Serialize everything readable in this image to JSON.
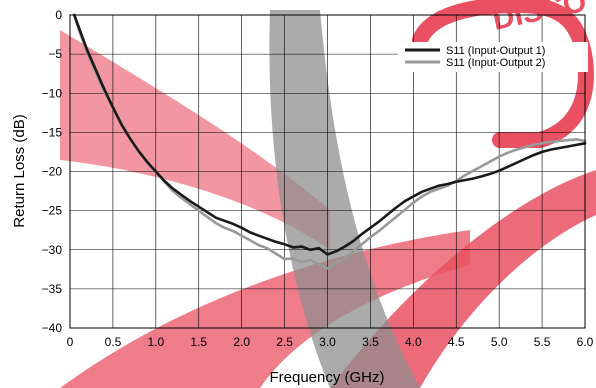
{
  "watermark": {
    "stamp_text": "DISCO",
    "stamp_color": "#e8485a",
    "band_color_red": "#e8485a",
    "band_color_gray": "#8a8a8a"
  },
  "chart_data": {
    "type": "line",
    "title": "",
    "xlabel": "Frequency (GHz)",
    "ylabel": "Return Loss (dB)",
    "xlim": [
      0,
      6
    ],
    "ylim": [
      -40,
      0
    ],
    "x_ticks": [
      0,
      0.5,
      1,
      1.5,
      2,
      2.5,
      3,
      3.5,
      4,
      4.5,
      5,
      5.5,
      6
    ],
    "x_tick_labels": [
      "0",
      "0.5",
      "1.0",
      "1.5",
      "2.0",
      "2.5",
      "3.0",
      "3.5",
      "4.0",
      "4.5",
      "5.0",
      "5.5",
      "6.0"
    ],
    "y_ticks": [
      0,
      -5,
      -10,
      -15,
      -20,
      -25,
      -30,
      -35,
      -40
    ],
    "y_tick_labels": [
      "0",
      "−5",
      "−10",
      "−15",
      "−20",
      "−25",
      "−30",
      "−35",
      "−40"
    ],
    "grid": true,
    "legend_position": "top-right",
    "series": [
      {
        "name": "S11 (Input-Output 1)",
        "color": "#1a1a1a",
        "x": [
          0.05,
          0.1,
          0.2,
          0.3,
          0.4,
          0.5,
          0.6,
          0.7,
          0.8,
          0.9,
          1.0,
          1.1,
          1.2,
          1.3,
          1.4,
          1.5,
          1.6,
          1.7,
          1.8,
          1.9,
          2.0,
          2.1,
          2.2,
          2.3,
          2.4,
          2.5,
          2.6,
          2.7,
          2.8,
          2.9,
          3.0,
          3.1,
          3.2,
          3.3,
          3.4,
          3.5,
          3.6,
          3.7,
          3.8,
          3.9,
          4.0,
          4.1,
          4.2,
          4.3,
          4.4,
          4.5,
          4.6,
          4.7,
          4.8,
          4.9,
          5.0,
          5.1,
          5.2,
          5.3,
          5.4,
          5.5,
          5.6,
          5.7,
          5.8,
          5.9,
          6.0
        ],
        "y": [
          0,
          -1.5,
          -4.5,
          -7,
          -9.5,
          -11.8,
          -14,
          -15.8,
          -17.4,
          -18.8,
          -20,
          -21.2,
          -22.2,
          -23,
          -23.8,
          -24.5,
          -25.2,
          -25.9,
          -26.3,
          -26.7,
          -27.2,
          -27.8,
          -28.2,
          -28.6,
          -29,
          -29.3,
          -29.7,
          -29.6,
          -30,
          -29.8,
          -30.6,
          -30.2,
          -29.6,
          -28.9,
          -28,
          -27.2,
          -26.4,
          -25.5,
          -24.6,
          -23.8,
          -23.2,
          -22.6,
          -22.2,
          -21.8,
          -21.6,
          -21.3,
          -21.1,
          -20.9,
          -20.6,
          -20.3,
          -19.9,
          -19.4,
          -18.9,
          -18.4,
          -17.9,
          -17.5,
          -17.2,
          -17,
          -16.8,
          -16.6,
          -16.4
        ]
      },
      {
        "name": "S11 (Input-Output 2)",
        "color": "#999999",
        "x": [
          0.05,
          0.1,
          0.2,
          0.3,
          0.4,
          0.5,
          0.6,
          0.7,
          0.8,
          0.9,
          1.0,
          1.1,
          1.2,
          1.3,
          1.4,
          1.5,
          1.6,
          1.7,
          1.8,
          1.9,
          2.0,
          2.1,
          2.2,
          2.3,
          2.4,
          2.5,
          2.6,
          2.7,
          2.8,
          2.9,
          3.0,
          3.1,
          3.2,
          3.3,
          3.4,
          3.5,
          3.6,
          3.7,
          3.8,
          3.9,
          4.0,
          4.1,
          4.2,
          4.3,
          4.4,
          4.5,
          4.6,
          4.7,
          4.8,
          4.9,
          5.0,
          5.1,
          5.2,
          5.3,
          5.4,
          5.5,
          5.6,
          5.7,
          5.8,
          5.9,
          6.0
        ],
        "y": [
          0,
          -1.8,
          -4.8,
          -7.4,
          -9.8,
          -11.8,
          -13.9,
          -15.8,
          -17.4,
          -18.9,
          -20,
          -21.3,
          -22.5,
          -23.4,
          -24.2,
          -25,
          -25.8,
          -26.6,
          -27.2,
          -27.6,
          -28.2,
          -28.8,
          -29.4,
          -29.8,
          -30.5,
          -31.2,
          -31.1,
          -31.6,
          -31.3,
          -31.9,
          -32.4,
          -31.6,
          -31.2,
          -30.2,
          -29.3,
          -28.4,
          -27.6,
          -26.7,
          -25.8,
          -24.9,
          -24,
          -23.2,
          -22.6,
          -22.2,
          -21.8,
          -21.2,
          -20.5,
          -19.9,
          -19.3,
          -18.7,
          -18.1,
          -17.6,
          -17.2,
          -16.9,
          -16.6,
          -16.4,
          -16.2,
          -16.1,
          -16,
          -15.9,
          -16.1
        ]
      }
    ]
  }
}
